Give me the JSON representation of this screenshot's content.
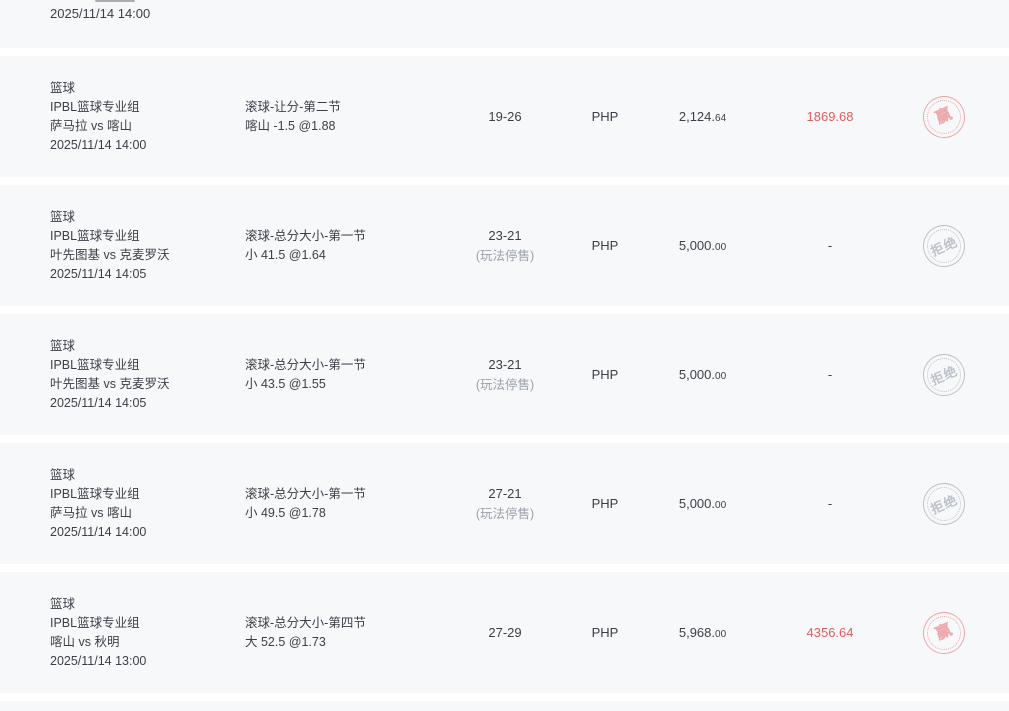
{
  "colors": {
    "row_background": "#f7f8f9",
    "page_background": "#ffffff",
    "text_main": "#3a3f48",
    "text_muted": "#9ba1ac",
    "result_win_red": "#e05e5e",
    "stamp_win_red": "#eb9a9a",
    "stamp_rejected_gray": "#b7bdc7"
  },
  "list": {
    "partial_row": {
      "date": "2025/11/14 14:00"
    },
    "rows": [
      {
        "sport": "篮球",
        "league": "IPBL篮球专业组",
        "teams": "萨马拉 vs 喀山",
        "datetime": "2025/11/14 14:00",
        "bet_type": "滚球-让分-第二节",
        "selection": "喀山 -1.5 @1.88",
        "score": "19-26",
        "score_note": "",
        "currency": "PHP",
        "amount_main": "2,124.",
        "amount_dec": "64",
        "result": "1869.68",
        "result_state": "win",
        "stamp_text": "赢",
        "stamp_state": "win"
      },
      {
        "sport": "篮球",
        "league": "IPBL篮球专业组",
        "teams": "叶先图基 vs 克麦罗沃",
        "datetime": "2025/11/14 14:05",
        "bet_type": "滚球-总分大小-第一节",
        "selection": "小 41.5 @1.64",
        "score": "23-21",
        "score_note": "(玩法停售)",
        "currency": "PHP",
        "amount_main": "5,000.",
        "amount_dec": "00",
        "result": "-",
        "result_state": "none",
        "stamp_text": "拒绝",
        "stamp_state": "rejected"
      },
      {
        "sport": "篮球",
        "league": "IPBL篮球专业组",
        "teams": "叶先图基 vs 克麦罗沃",
        "datetime": "2025/11/14 14:05",
        "bet_type": "滚球-总分大小-第一节",
        "selection": "小 43.5 @1.55",
        "score": "23-21",
        "score_note": "(玩法停售)",
        "currency": "PHP",
        "amount_main": "5,000.",
        "amount_dec": "00",
        "result": "-",
        "result_state": "none",
        "stamp_text": "拒绝",
        "stamp_state": "rejected"
      },
      {
        "sport": "篮球",
        "league": "IPBL篮球专业组",
        "teams": "萨马拉 vs 喀山",
        "datetime": "2025/11/14 14:00",
        "bet_type": "滚球-总分大小-第一节",
        "selection": "小 49.5 @1.78",
        "score": "27-21",
        "score_note": "(玩法停售)",
        "currency": "PHP",
        "amount_main": "5,000.",
        "amount_dec": "00",
        "result": "-",
        "result_state": "none",
        "stamp_text": "拒绝",
        "stamp_state": "rejected"
      },
      {
        "sport": "篮球",
        "league": "IPBL篮球专业组",
        "teams": "喀山 vs 秋明",
        "datetime": "2025/11/14 13:00",
        "bet_type": "滚球-总分大小-第四节",
        "selection": "大 52.5 @1.73",
        "score": "27-29",
        "score_note": "",
        "currency": "PHP",
        "amount_main": "5,968.",
        "amount_dec": "00",
        "result": "4356.64",
        "result_state": "win",
        "stamp_text": "赢",
        "stamp_state": "win"
      }
    ]
  }
}
